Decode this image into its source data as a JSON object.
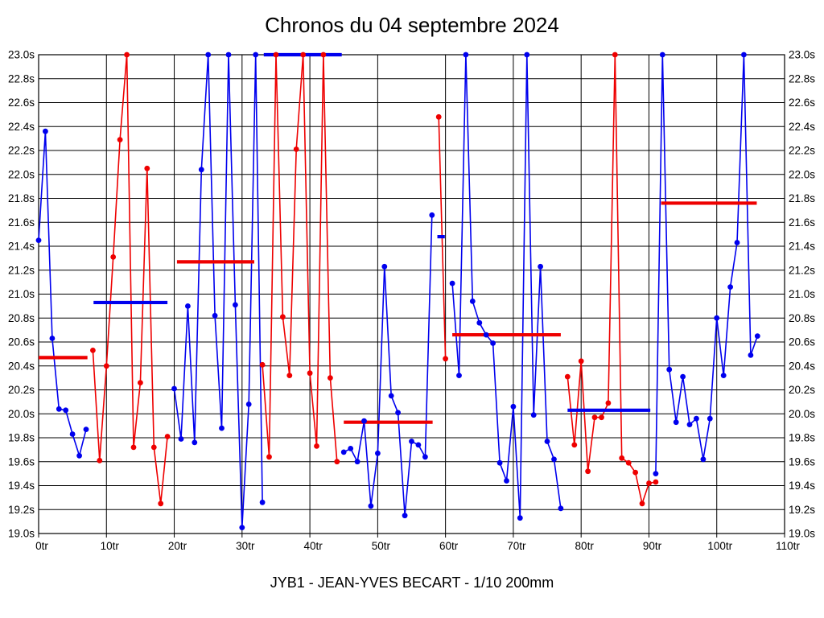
{
  "chart_data": {
    "type": "line",
    "title": "Chronos du 04 septembre 2024",
    "subtitle": "JYB1 - JEAN-YVES BECART - 1/10 200mm",
    "grid": true,
    "legend": "none",
    "clip_max": 23.0,
    "x_axis": {
      "unit": "tr",
      "min": 0,
      "max": 110,
      "tick_step": 10,
      "tick_labels": [
        "0tr",
        "10tr",
        "20tr",
        "30tr",
        "40tr",
        "50tr",
        "60tr",
        "70tr",
        "80tr",
        "90tr",
        "100tr",
        "110tr"
      ]
    },
    "y_axis": {
      "unit": "s",
      "min": 19.0,
      "max": 23.0,
      "tick_step": 0.2,
      "tick_labels": [
        "23.0s",
        "22.8s",
        "22.6s",
        "22.4s",
        "22.2s",
        "22.0s",
        "21.8s",
        "21.6s",
        "21.4s",
        "21.2s",
        "21.0s",
        "20.8s",
        "20.6s",
        "20.4s",
        "20.2s",
        "20.0s",
        "19.8s",
        "19.6s",
        "19.4s",
        "19.2s",
        "19.0s"
      ],
      "labels_on_both_sides": true
    },
    "colors": {
      "blue_series": "#0000ee",
      "red_series": "#ee0000",
      "grid": "#000000",
      "background": "#ffffff",
      "text": "#000000"
    },
    "series": [
      {
        "name": "serie-bleue",
        "color": "#0000ee",
        "stints": [
          [
            [
              0,
              21.45
            ],
            [
              1,
              22.36
            ],
            [
              2,
              20.63
            ],
            [
              3,
              20.04
            ],
            [
              4,
              20.03
            ],
            [
              5,
              19.83
            ],
            [
              6,
              19.65
            ],
            [
              7,
              19.87
            ]
          ],
          [
            [
              20,
              20.21
            ],
            [
              21,
              19.79
            ],
            [
              22,
              20.9
            ],
            [
              23,
              19.76
            ],
            [
              24,
              22.04
            ],
            [
              25,
              23.0
            ],
            [
              26,
              20.82
            ],
            [
              27,
              19.88
            ],
            [
              28,
              23.0
            ],
            [
              29,
              20.91
            ],
            [
              30,
              19.05
            ],
            [
              31,
              20.08
            ],
            [
              32,
              23.0
            ],
            [
              33,
              19.26
            ]
          ],
          [
            [
              45,
              19.68
            ],
            [
              46,
              19.71
            ],
            [
              47,
              19.6
            ],
            [
              48,
              19.94
            ],
            [
              49,
              19.23
            ],
            [
              50,
              19.67
            ],
            [
              51,
              21.23
            ],
            [
              52,
              20.15
            ],
            [
              53,
              20.01
            ],
            [
              54,
              19.15
            ],
            [
              55,
              19.77
            ],
            [
              56,
              19.74
            ],
            [
              57,
              19.64
            ],
            [
              58,
              21.66
            ]
          ],
          [
            [
              61,
              21.09
            ],
            [
              62,
              20.32
            ],
            [
              63,
              23.0
            ],
            [
              64,
              20.94
            ],
            [
              65,
              20.76
            ],
            [
              66,
              20.66
            ],
            [
              67,
              20.59
            ],
            [
              68,
              19.59
            ],
            [
              69,
              19.44
            ],
            [
              70,
              20.06
            ],
            [
              71,
              19.13
            ],
            [
              72,
              23.0
            ],
            [
              73,
              19.99
            ],
            [
              74,
              21.23
            ],
            [
              75,
              19.77
            ],
            [
              76,
              19.62
            ],
            [
              77,
              19.21
            ]
          ],
          [
            [
              91,
              19.5
            ],
            [
              92,
              23.0
            ],
            [
              93,
              20.37
            ],
            [
              94,
              19.93
            ],
            [
              95,
              20.31
            ],
            [
              96,
              19.91
            ],
            [
              97,
              19.96
            ],
            [
              98,
              19.62
            ],
            [
              99,
              19.96
            ],
            [
              100,
              20.8
            ],
            [
              101,
              20.32
            ],
            [
              102,
              21.06
            ],
            [
              103,
              21.43
            ],
            [
              104,
              23.0
            ],
            [
              105,
              20.49
            ],
            [
              106,
              20.65
            ]
          ]
        ]
      },
      {
        "name": "serie-rouge",
        "color": "#ee0000",
        "stints": [
          [
            [
              8,
              20.53
            ],
            [
              9,
              19.61
            ],
            [
              10,
              20.4
            ],
            [
              11,
              21.31
            ],
            [
              12,
              22.29
            ],
            [
              13,
              23.0
            ],
            [
              14,
              19.72
            ],
            [
              15,
              20.26
            ],
            [
              16,
              22.05
            ],
            [
              17,
              19.72
            ],
            [
              18,
              19.25
            ],
            [
              19,
              19.81
            ]
          ],
          [
            [
              33,
              20.41
            ],
            [
              34,
              19.64
            ],
            [
              35,
              23.0
            ],
            [
              36,
              20.81
            ],
            [
              37,
              20.32
            ],
            [
              38,
              22.21
            ],
            [
              39,
              23.0
            ],
            [
              40,
              20.34
            ],
            [
              41,
              19.73
            ],
            [
              42,
              23.0
            ],
            [
              43,
              20.3
            ],
            [
              44,
              19.6
            ]
          ],
          [
            [
              59,
              22.48
            ],
            [
              60,
              20.46
            ]
          ],
          [
            [
              78,
              20.31
            ],
            [
              79,
              19.74
            ],
            [
              80,
              20.44
            ],
            [
              81,
              19.52
            ],
            [
              82,
              19.97
            ],
            [
              83,
              19.97
            ],
            [
              84,
              20.09
            ],
            [
              85,
              23.0
            ],
            [
              86,
              19.63
            ],
            [
              87,
              19.59
            ],
            [
              88,
              19.51
            ],
            [
              89,
              19.25
            ],
            [
              90,
              19.42
            ],
            [
              91,
              19.43
            ]
          ]
        ]
      }
    ],
    "average_segments": [
      {
        "color": "#ee0000",
        "value": 20.47,
        "from_lap": 0.0,
        "to_lap": 7.2
      },
      {
        "color": "#0000ee",
        "value": 20.93,
        "from_lap": 8.1,
        "to_lap": 19.0
      },
      {
        "color": "#ee0000",
        "value": 21.27,
        "from_lap": 20.4,
        "to_lap": 31.8
      },
      {
        "color": "#0000ee",
        "value": 23.0,
        "from_lap": 33.2,
        "to_lap": 44.7
      },
      {
        "color": "#ee0000",
        "value": 19.93,
        "from_lap": 45.0,
        "to_lap": 58.1
      },
      {
        "color": "#0000ee",
        "value": 21.48,
        "from_lap": 58.8,
        "to_lap": 59.9
      },
      {
        "color": "#ee0000",
        "value": 20.66,
        "from_lap": 61.0,
        "to_lap": 77.0
      },
      {
        "color": "#0000ee",
        "value": 20.03,
        "from_lap": 78.0,
        "to_lap": 90.2
      },
      {
        "color": "#ee0000",
        "value": 21.76,
        "from_lap": 91.8,
        "to_lap": 105.9
      }
    ]
  }
}
